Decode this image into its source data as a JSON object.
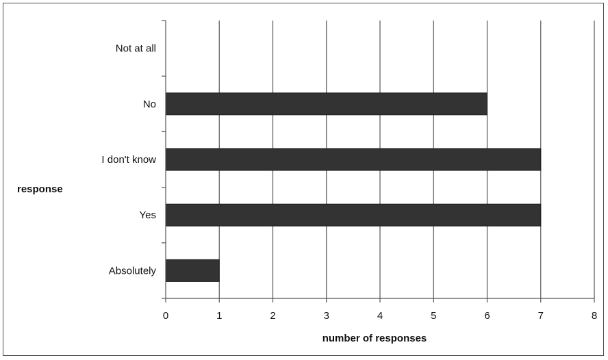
{
  "chart_data": {
    "type": "bar",
    "orientation": "horizontal",
    "categories": [
      "Not at all",
      "No",
      "I don't know",
      "Yes",
      "Absolutely"
    ],
    "values": [
      0,
      6,
      7,
      7,
      1
    ],
    "xlabel": "number of responses",
    "ylabel": "response",
    "xlim": [
      0,
      8
    ],
    "xticks": [
      "0",
      "1",
      "2",
      "3",
      "4",
      "5",
      "6",
      "7",
      "8"
    ],
    "grid": "vertical",
    "legend": "none",
    "bar_color": "#333333"
  }
}
